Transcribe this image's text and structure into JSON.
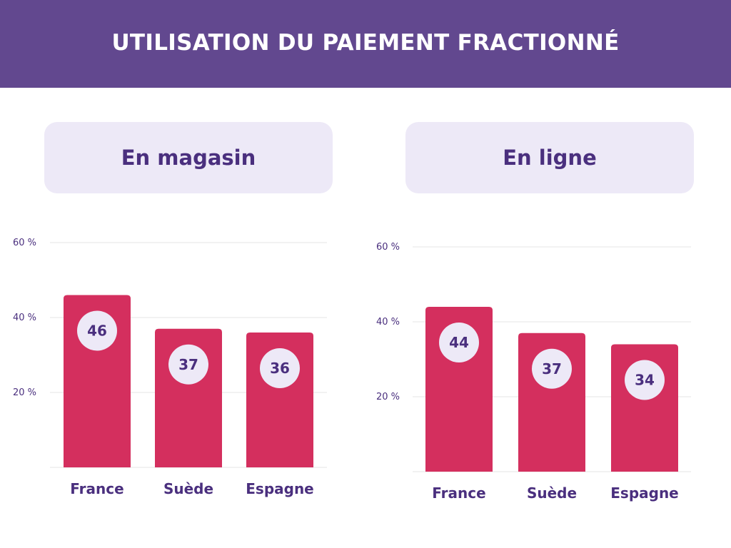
{
  "header": {
    "title": "UTILISATION DU PAIEMENT FRACTIONNÉ"
  },
  "colors": {
    "header_bg": "#62488f",
    "panel_bg": "#ede9f7",
    "label_text": "#4a2f7e",
    "bar": "#d42f5e",
    "value_circle": "#ede9f7",
    "gridline": "#e6e6e6",
    "tick_text": "#4a2f7e"
  },
  "chart_data": [
    {
      "type": "bar",
      "title": "En magasin",
      "categories": [
        "France",
        "Suède",
        "Espagne"
      ],
      "values": [
        46,
        37,
        36
      ],
      "value_labels": [
        "46",
        "37",
        "36"
      ],
      "yticks": [
        20,
        40,
        60
      ],
      "ytick_labels": [
        "20 %",
        "40 %",
        "60 %"
      ],
      "ylim": [
        0,
        60
      ],
      "grid": true,
      "xlabel": "",
      "ylabel": ""
    },
    {
      "type": "bar",
      "title": "En ligne",
      "categories": [
        "France",
        "Suède",
        "Espagne"
      ],
      "values": [
        44,
        37,
        34
      ],
      "value_labels": [
        "44",
        "37",
        "34"
      ],
      "yticks": [
        20,
        40,
        60
      ],
      "ytick_labels": [
        "20 %",
        "40 %",
        "60 %"
      ],
      "ylim": [
        0,
        60
      ],
      "grid": true,
      "xlabel": "",
      "ylabel": ""
    }
  ]
}
